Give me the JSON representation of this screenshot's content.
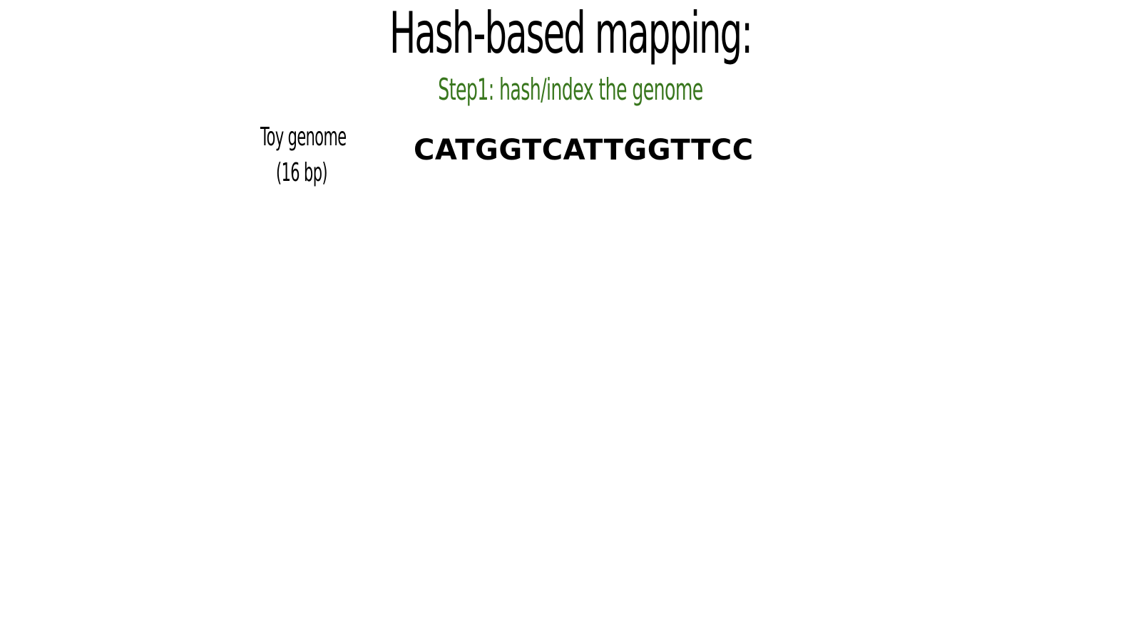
{
  "slide": {
    "title": "Hash-based mapping:",
    "subtitle": "Step1: hash/index the genome",
    "genome_label": {
      "line1": "Toy genome",
      "line2": "(16 bp)"
    },
    "sequence": "CATGGTCATTGGTTCC",
    "colors": {
      "title": "#000000",
      "subtitle": "#38761d",
      "background": "#ffffff"
    }
  }
}
